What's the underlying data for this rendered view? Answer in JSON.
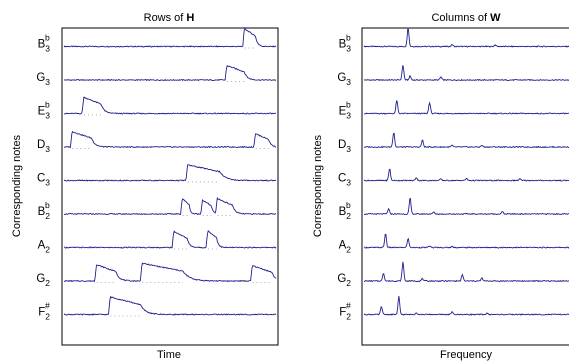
{
  "chart_data": [
    {
      "type": "line",
      "title_prefix": "Rows of ",
      "title_bold": "H",
      "title": "Rows of H",
      "xlabel": "Time",
      "ylabel": "Corresponding notes",
      "line_color": "#1f1f8f",
      "x_range": [
        0,
        1
      ],
      "y_range_per_row": [
        0,
        1
      ],
      "rows": [
        {
          "note": "B",
          "sup": "b",
          "sub": "3",
          "activations": [
            {
              "x": 0.843,
              "h": 0.95,
              "w": 0.06
            }
          ]
        },
        {
          "note": "G",
          "sup": "",
          "sub": "3",
          "activations": [
            {
              "x": 0.76,
              "h": 0.75,
              "w": 0.09
            }
          ]
        },
        {
          "note": "E",
          "sup": "b",
          "sub": "3",
          "activations": [
            {
              "x": 0.085,
              "h": 0.85,
              "w": 0.09
            }
          ]
        },
        {
          "note": "D",
          "sup": "",
          "sub": "3",
          "activations": [
            {
              "x": 0.03,
              "h": 0.8,
              "w": 0.1
            },
            {
              "x": 0.895,
              "h": 0.7,
              "w": 0.07
            }
          ]
        },
        {
          "note": "C",
          "sup": "",
          "sub": "3",
          "activations": [
            {
              "x": 0.575,
              "h": 0.8,
              "w": 0.16
            }
          ]
        },
        {
          "note": "B",
          "sup": "b",
          "sub": "2",
          "activations": [
            {
              "x": 0.55,
              "h": 0.85,
              "w": 0.04
            },
            {
              "x": 0.645,
              "h": 0.75,
              "w": 0.05
            },
            {
              "x": 0.715,
              "h": 0.8,
              "w": 0.08
            }
          ]
        },
        {
          "note": "A",
          "sup": "",
          "sub": "2",
          "activations": [
            {
              "x": 0.51,
              "h": 0.85,
              "w": 0.07
            },
            {
              "x": 0.67,
              "h": 0.9,
              "w": 0.05
            }
          ]
        },
        {
          "note": "G",
          "sup": "",
          "sub": "2",
          "activations": [
            {
              "x": 0.145,
              "h": 0.85,
              "w": 0.1
            },
            {
              "x": 0.36,
              "h": 0.9,
              "w": 0.2
            },
            {
              "x": 0.88,
              "h": 0.8,
              "w": 0.1
            }
          ]
        },
        {
          "note": "F",
          "sup": "#",
          "sub": "2",
          "activations": [
            {
              "x": 0.21,
              "h": 0.9,
              "w": 0.15
            }
          ]
        }
      ]
    },
    {
      "type": "line",
      "title_prefix": "Columns of ",
      "title_bold": "W",
      "title": "Columns of W",
      "xlabel": "Frequency",
      "ylabel": "Corresponding notes",
      "line_color": "#1f1f8f",
      "x_range": [
        0,
        1
      ],
      "y_range_per_row": [
        0,
        1
      ],
      "rows": [
        {
          "note": "B",
          "sup": "b",
          "sub": "3",
          "peaks": [
            {
              "x": 0.215,
              "h": 0.95
            },
            {
              "x": 0.43,
              "h": 0.1
            },
            {
              "x": 0.64,
              "h": 0.08
            }
          ]
        },
        {
          "note": "G",
          "sup": "",
          "sub": "3",
          "peaks": [
            {
              "x": 0.19,
              "h": 0.75
            },
            {
              "x": 0.225,
              "h": 0.2
            },
            {
              "x": 0.375,
              "h": 0.15
            }
          ]
        },
        {
          "note": "E",
          "sup": "b",
          "sub": "3",
          "peaks": [
            {
              "x": 0.16,
              "h": 0.65
            },
            {
              "x": 0.32,
              "h": 0.55
            }
          ]
        },
        {
          "note": "D",
          "sup": "",
          "sub": "3",
          "peaks": [
            {
              "x": 0.145,
              "h": 0.75
            },
            {
              "x": 0.285,
              "h": 0.35
            },
            {
              "x": 0.43,
              "h": 0.08
            },
            {
              "x": 0.575,
              "h": 0.08
            }
          ]
        },
        {
          "note": "C",
          "sup": "",
          "sub": "3",
          "peaks": [
            {
              "x": 0.125,
              "h": 0.6
            },
            {
              "x": 0.255,
              "h": 0.15
            },
            {
              "x": 0.375,
              "h": 0.08
            },
            {
              "x": 0.5,
              "h": 0.1
            },
            {
              "x": 0.76,
              "h": 0.08
            }
          ]
        },
        {
          "note": "B",
          "sup": "b",
          "sub": "2",
          "peaks": [
            {
              "x": 0.12,
              "h": 0.25
            },
            {
              "x": 0.225,
              "h": 0.8
            },
            {
              "x": 0.34,
              "h": 0.1
            },
            {
              "x": 0.675,
              "h": 0.12
            }
          ]
        },
        {
          "note": "A",
          "sup": "",
          "sub": "2",
          "peaks": [
            {
              "x": 0.105,
              "h": 0.7
            },
            {
              "x": 0.215,
              "h": 0.45
            },
            {
              "x": 0.32,
              "h": 0.08
            },
            {
              "x": 0.43,
              "h": 0.05
            }
          ]
        },
        {
          "note": "G",
          "sup": "",
          "sub": "2",
          "peaks": [
            {
              "x": 0.095,
              "h": 0.4
            },
            {
              "x": 0.19,
              "h": 0.95
            },
            {
              "x": 0.285,
              "h": 0.12
            },
            {
              "x": 0.48,
              "h": 0.3
            },
            {
              "x": 0.575,
              "h": 0.15
            }
          ]
        },
        {
          "note": "F",
          "sup": "#",
          "sub": "2",
          "peaks": [
            {
              "x": 0.085,
              "h": 0.4
            },
            {
              "x": 0.17,
              "h": 0.9
            },
            {
              "x": 0.255,
              "h": 0.1
            },
            {
              "x": 0.43,
              "h": 0.12
            },
            {
              "x": 0.6,
              "h": 0.06
            }
          ]
        }
      ]
    }
  ]
}
